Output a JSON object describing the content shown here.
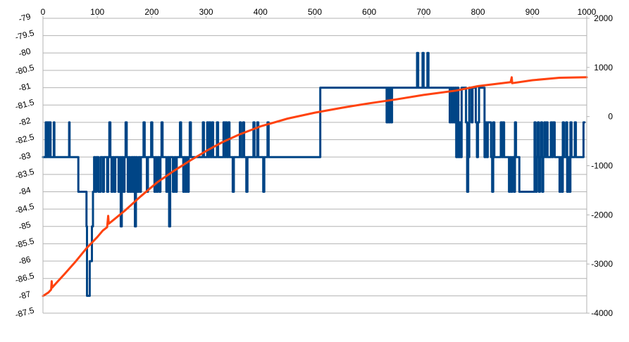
{
  "chart_data": {
    "type": "line",
    "title": "",
    "xlabel": "",
    "ylabel": "",
    "grid": true,
    "legend": "none",
    "x_axis": {
      "position": "top",
      "range": [
        0,
        1000
      ],
      "ticks": [
        "0",
        "100",
        "200",
        "300",
        "400",
        "500",
        "600",
        "700",
        "800",
        "900",
        "1000"
      ]
    },
    "y_left": {
      "range": [
        -87.5,
        -79
      ],
      "inverted": true,
      "ticks": [
        "-79",
        "-79.5",
        "-80",
        "-80.5",
        "-81",
        "-81.5",
        "-82",
        "-82.5",
        "-83",
        "-83.5",
        "-84",
        "-84.5",
        "-85",
        "-85.5",
        "-86",
        "-86.5",
        "-87",
        "-87.5"
      ]
    },
    "y_right": {
      "range": [
        -4000,
        2000
      ],
      "ticks": [
        "2000",
        "1000",
        "0",
        "-1000",
        "-2000",
        "-3000",
        "-4000"
      ]
    },
    "series": [
      {
        "axis": "left",
        "color": "#004586",
        "kind": "step",
        "points": [
          [
            0,
            -83
          ],
          [
            5,
            -82
          ],
          [
            6,
            -83
          ],
          [
            7,
            -82
          ],
          [
            9,
            -83
          ],
          [
            10,
            -82
          ],
          [
            12,
            -83
          ],
          [
            13,
            -82
          ],
          [
            14,
            -83
          ],
          [
            20,
            -82
          ],
          [
            21,
            -83
          ],
          [
            48,
            -82
          ],
          [
            49,
            -83
          ],
          [
            65,
            -84
          ],
          [
            75,
            -84
          ],
          [
            80,
            -85
          ],
          [
            81,
            -87
          ],
          [
            86,
            -86
          ],
          [
            90,
            -85
          ],
          [
            92,
            -84
          ],
          [
            94,
            -83
          ],
          [
            96,
            -84
          ],
          [
            98,
            -83
          ],
          [
            102,
            -84
          ],
          [
            106,
            -83
          ],
          [
            110,
            -84
          ],
          [
            112,
            -83
          ],
          [
            116,
            -83
          ],
          [
            118,
            -84
          ],
          [
            120,
            -83
          ],
          [
            122,
            -82
          ],
          [
            124,
            -83
          ],
          [
            126,
            -84
          ],
          [
            128,
            -83
          ],
          [
            131,
            -84
          ],
          [
            133,
            -83
          ],
          [
            137,
            -83
          ],
          [
            139,
            -84
          ],
          [
            141,
            -83
          ],
          [
            143,
            -85
          ],
          [
            145,
            -83
          ],
          [
            148,
            -84
          ],
          [
            150,
            -83
          ],
          [
            152,
            -82
          ],
          [
            154,
            -83
          ],
          [
            156,
            -84
          ],
          [
            158,
            -83
          ],
          [
            160,
            -84
          ],
          [
            163,
            -83
          ],
          [
            165,
            -84
          ],
          [
            167,
            -83
          ],
          [
            169,
            -85
          ],
          [
            171,
            -83
          ],
          [
            173,
            -84
          ],
          [
            176,
            -83
          ],
          [
            178,
            -84
          ],
          [
            180,
            -83
          ],
          [
            185,
            -82
          ],
          [
            187,
            -83
          ],
          [
            191,
            -84
          ],
          [
            193,
            -83
          ],
          [
            197,
            -83
          ],
          [
            199,
            -82
          ],
          [
            201,
            -83
          ],
          [
            205,
            -84
          ],
          [
            207,
            -83
          ],
          [
            209,
            -84
          ],
          [
            211,
            -83
          ],
          [
            214,
            -84
          ],
          [
            216,
            -83
          ],
          [
            218,
            -82
          ],
          [
            220,
            -83
          ],
          [
            225,
            -83
          ],
          [
            227,
            -84
          ],
          [
            229,
            -83
          ],
          [
            232,
            -85
          ],
          [
            234,
            -83
          ],
          [
            237,
            -83
          ],
          [
            239,
            -84
          ],
          [
            242,
            -83
          ],
          [
            244,
            -84
          ],
          [
            246,
            -83
          ],
          [
            250,
            -83
          ],
          [
            252,
            -82
          ],
          [
            254,
            -83
          ],
          [
            258,
            -84
          ],
          [
            260,
            -83
          ],
          [
            262,
            -84
          ],
          [
            264,
            -83
          ],
          [
            266,
            -84
          ],
          [
            268,
            -83
          ],
          [
            270,
            -82
          ],
          [
            272,
            -83
          ],
          [
            276,
            -83
          ],
          [
            292,
            -83
          ],
          [
            294,
            -82
          ],
          [
            296,
            -83
          ],
          [
            300,
            -83
          ],
          [
            302,
            -82
          ],
          [
            304,
            -83
          ],
          [
            306,
            -82
          ],
          [
            308,
            -83
          ],
          [
            311,
            -82
          ],
          [
            313,
            -83
          ],
          [
            318,
            -83
          ],
          [
            320,
            -82
          ],
          [
            322,
            -83
          ],
          [
            326,
            -83
          ],
          [
            330,
            -83
          ],
          [
            332,
            -82
          ],
          [
            334,
            -83
          ],
          [
            336,
            -82
          ],
          [
            338,
            -83
          ],
          [
            341,
            -82
          ],
          [
            343,
            -83
          ],
          [
            345,
            -83
          ],
          [
            349,
            -84
          ],
          [
            351,
            -83
          ],
          [
            356,
            -83
          ],
          [
            360,
            -83
          ],
          [
            362,
            -82
          ],
          [
            364,
            -83
          ],
          [
            368,
            -82
          ],
          [
            370,
            -83
          ],
          [
            374,
            -84
          ],
          [
            376,
            -83
          ],
          [
            380,
            -83
          ],
          [
            384,
            -83
          ],
          [
            387,
            -82
          ],
          [
            389,
            -83
          ],
          [
            394,
            -82
          ],
          [
            396,
            -83
          ],
          [
            403,
            -83
          ],
          [
            405,
            -84
          ],
          [
            407,
            -83
          ],
          [
            410,
            -83
          ],
          [
            413,
            -82
          ],
          [
            415,
            -83
          ],
          [
            420,
            -83
          ],
          [
            435,
            -83
          ],
          [
            510,
            -81
          ],
          [
            630,
            -81
          ],
          [
            632,
            -82
          ],
          [
            634,
            -81
          ],
          [
            636,
            -82
          ],
          [
            638,
            -81
          ],
          [
            640,
            -82
          ],
          [
            642,
            -81
          ],
          [
            648,
            -81
          ],
          [
            670,
            -81
          ],
          [
            686,
            -81
          ],
          [
            688,
            -80
          ],
          [
            690,
            -81
          ],
          [
            693,
            -81
          ],
          [
            696,
            -81
          ],
          [
            698,
            -80
          ],
          [
            700,
            -81
          ],
          [
            702,
            -81
          ],
          [
            705,
            -81
          ],
          [
            707,
            -80
          ],
          [
            709,
            -81
          ],
          [
            712,
            -81
          ],
          [
            716,
            -81
          ],
          [
            746,
            -81
          ],
          [
            748,
            -82
          ],
          [
            750,
            -81
          ],
          [
            752,
            -82
          ],
          [
            754,
            -81
          ],
          [
            756,
            -82
          ],
          [
            758,
            -81
          ],
          [
            760,
            -83
          ],
          [
            762,
            -81
          ],
          [
            764,
            -83
          ],
          [
            766,
            -82
          ],
          [
            768,
            -83
          ],
          [
            770,
            -81
          ],
          [
            774,
            -81
          ],
          [
            778,
            -82
          ],
          [
            780,
            -84
          ],
          [
            782,
            -83
          ],
          [
            784,
            -81
          ],
          [
            786,
            -81
          ],
          [
            788,
            -82
          ],
          [
            790,
            -81
          ],
          [
            792,
            -81
          ],
          [
            794,
            -81
          ],
          [
            796,
            -82
          ],
          [
            798,
            -83
          ],
          [
            800,
            -82
          ],
          [
            802,
            -81
          ],
          [
            806,
            -81
          ],
          [
            810,
            -81
          ],
          [
            812,
            -83
          ],
          [
            814,
            -82
          ],
          [
            816,
            -83
          ],
          [
            818,
            -82
          ],
          [
            822,
            -82
          ],
          [
            824,
            -83
          ],
          [
            826,
            -84
          ],
          [
            828,
            -82
          ],
          [
            830,
            -83
          ],
          [
            835,
            -83
          ],
          [
            842,
            -82
          ],
          [
            844,
            -83
          ],
          [
            846,
            -82
          ],
          [
            848,
            -83
          ],
          [
            855,
            -83
          ],
          [
            857,
            -84
          ],
          [
            859,
            -83
          ],
          [
            861,
            -84
          ],
          [
            863,
            -83
          ],
          [
            866,
            -84
          ],
          [
            868,
            -82
          ],
          [
            870,
            -83
          ],
          [
            874,
            -83
          ],
          [
            876,
            -84
          ],
          [
            902,
            -84
          ],
          [
            904,
            -82
          ],
          [
            906,
            -84
          ],
          [
            908,
            -83
          ],
          [
            910,
            -82
          ],
          [
            912,
            -84
          ],
          [
            914,
            -83
          ],
          [
            916,
            -82
          ],
          [
            918,
            -84
          ],
          [
            920,
            -83
          ],
          [
            922,
            -82
          ],
          [
            924,
            -83
          ],
          [
            926,
            -82
          ],
          [
            928,
            -83
          ],
          [
            932,
            -83
          ],
          [
            934,
            -82
          ],
          [
            936,
            -83
          ],
          [
            938,
            -82
          ],
          [
            941,
            -83
          ],
          [
            946,
            -83
          ],
          [
            950,
            -84
          ],
          [
            952,
            -83
          ],
          [
            954,
            -84
          ],
          [
            956,
            -82
          ],
          [
            958,
            -83
          ],
          [
            962,
            -82
          ],
          [
            964,
            -84
          ],
          [
            966,
            -83
          ],
          [
            968,
            -84
          ],
          [
            970,
            -82
          ],
          [
            972,
            -83
          ],
          [
            976,
            -83
          ],
          [
            978,
            -82
          ],
          [
            980,
            -83
          ],
          [
            990,
            -83
          ],
          [
            994,
            -82
          ],
          [
            996,
            -82
          ]
        ]
      },
      {
        "axis": "right",
        "color": "#ff420e",
        "kind": "line",
        "points": [
          [
            0,
            -3650
          ],
          [
            10,
            -3580
          ],
          [
            15,
            -3520
          ],
          [
            16,
            -3350
          ],
          [
            17,
            -3480
          ],
          [
            25,
            -3380
          ],
          [
            40,
            -3200
          ],
          [
            60,
            -2950
          ],
          [
            80,
            -2680
          ],
          [
            100,
            -2450
          ],
          [
            110,
            -2320
          ],
          [
            118,
            -2250
          ],
          [
            120,
            -2020
          ],
          [
            121,
            -2180
          ],
          [
            130,
            -2100
          ],
          [
            150,
            -1920
          ],
          [
            180,
            -1620
          ],
          [
            210,
            -1340
          ],
          [
            240,
            -1110
          ],
          [
            270,
            -900
          ],
          [
            300,
            -700
          ],
          [
            330,
            -520
          ],
          [
            360,
            -370
          ],
          [
            400,
            -200
          ],
          [
            450,
            -40
          ],
          [
            500,
            80
          ],
          [
            550,
            180
          ],
          [
            600,
            270
          ],
          [
            650,
            350
          ],
          [
            700,
            440
          ],
          [
            760,
            530
          ],
          [
            800,
            620
          ],
          [
            860,
            700
          ],
          [
            862,
            800
          ],
          [
            863,
            680
          ],
          [
            900,
            740
          ],
          [
            950,
            790
          ],
          [
            1000,
            800
          ]
        ]
      }
    ]
  }
}
